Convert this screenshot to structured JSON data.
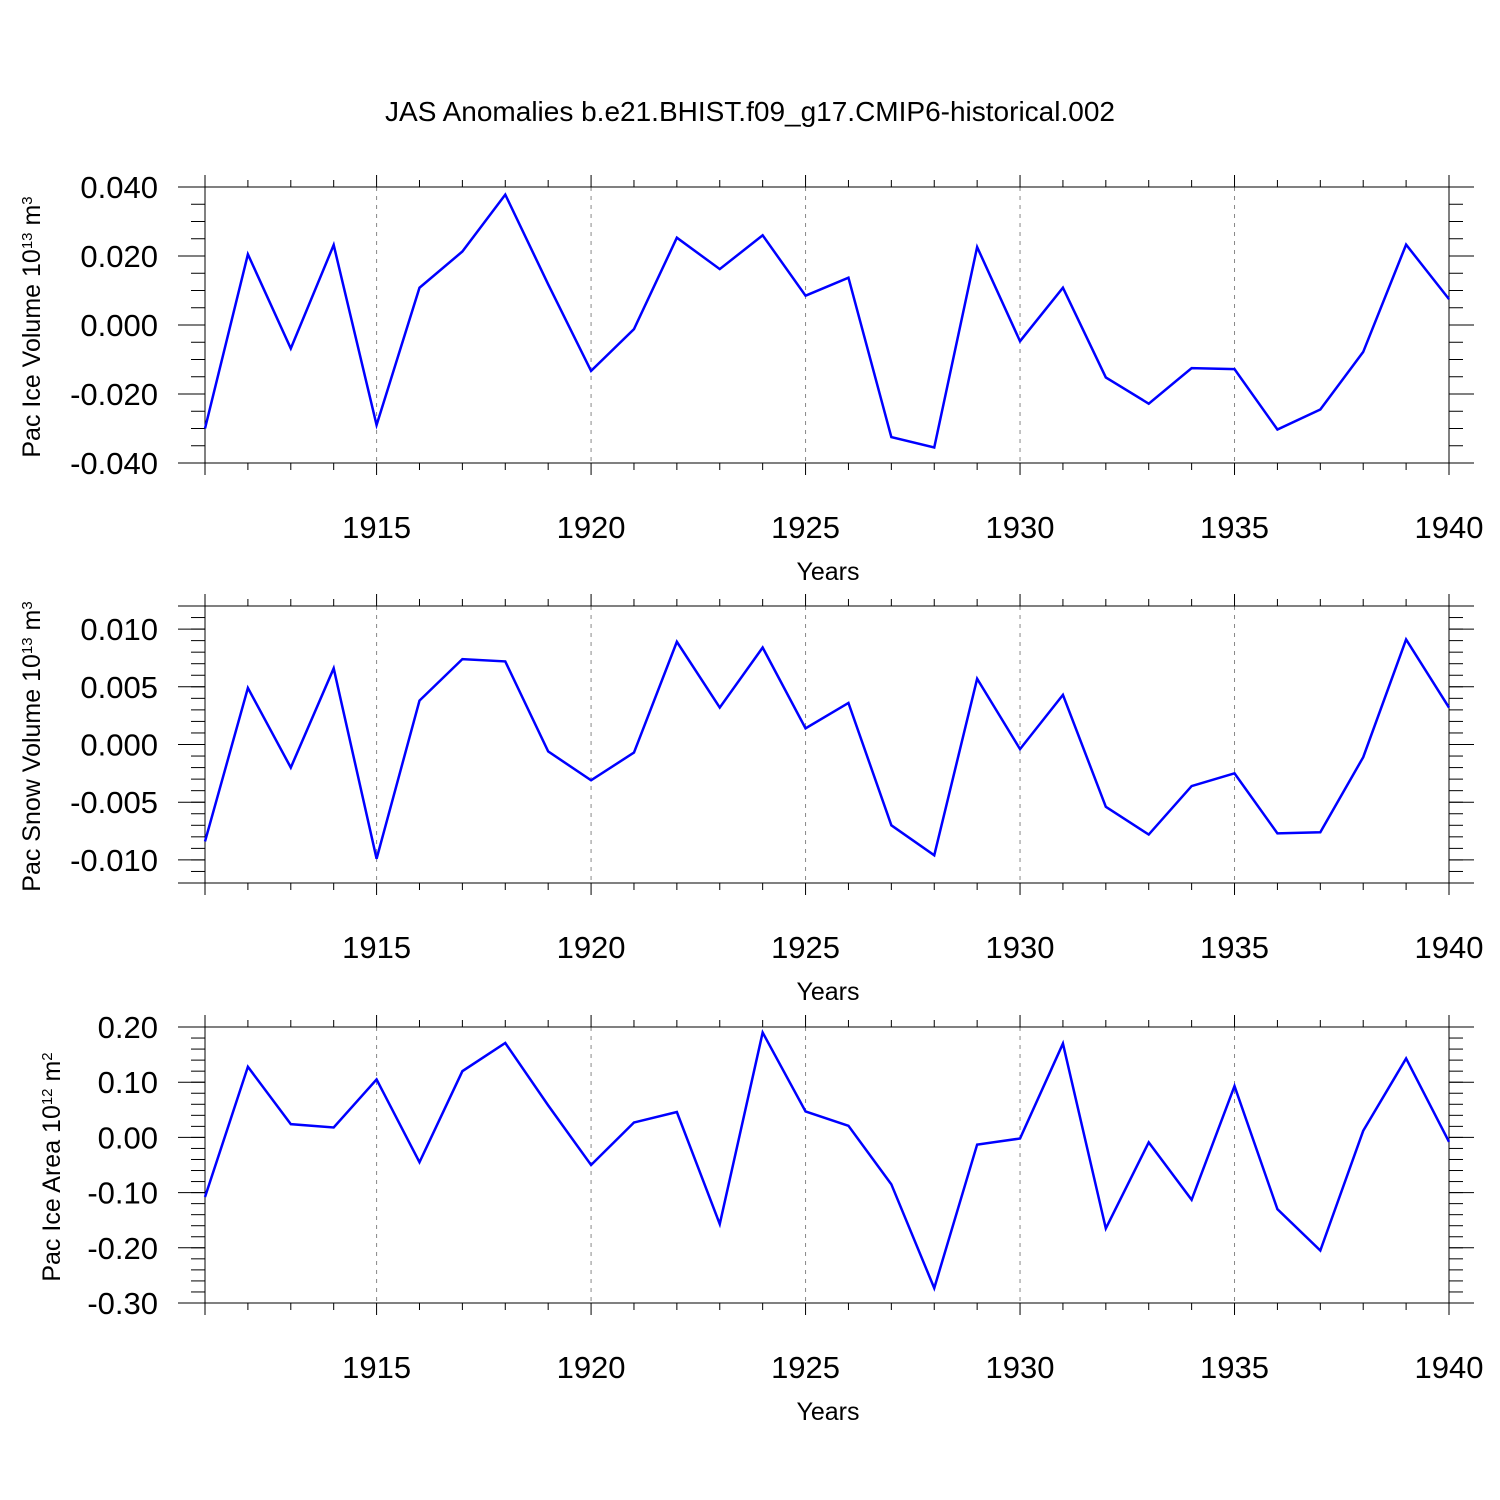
{
  "chart_data": {
    "title": "JAS Anomalies b.e21.BHIST.f09_g17.CMIP6-historical.002",
    "colors": {
      "line": "#0000ff",
      "axis": "#000000",
      "grid": "#888888"
    },
    "panels": [
      {
        "type": "line",
        "name": "Pac Ice Volume",
        "ylabel": {
          "main": "Pac Ice Volume 10",
          "exp": "13",
          "unit": " m",
          "unit_exp": "3"
        },
        "xlabel": "Years",
        "xlim": [
          1911,
          1940
        ],
        "ylim": [
          -0.04,
          0.04
        ],
        "yticks": [
          -0.04,
          -0.02,
          0.0,
          0.02,
          0.04
        ],
        "ytick_labels": [
          "-0.040",
          "-0.020",
          "0.000",
          "0.020",
          "0.040"
        ],
        "y_minor_step": 0.005,
        "xticks": [
          1915,
          1920,
          1925,
          1930,
          1935,
          1940
        ],
        "xtick_labels": [
          "1915",
          "1920",
          "1925",
          "1930",
          "1935",
          "1940"
        ],
        "grid": "vertical-dashed",
        "x": [
          1911,
          1912,
          1913,
          1914,
          1915,
          1916,
          1917,
          1918,
          1919,
          1920,
          1921,
          1922,
          1923,
          1924,
          1925,
          1926,
          1927,
          1928,
          1929,
          1930,
          1931,
          1932,
          1933,
          1934,
          1935,
          1936,
          1937,
          1938,
          1939,
          1940
        ],
        "values": [
          -0.03,
          0.0205,
          -0.0068,
          0.0232,
          -0.029,
          0.0108,
          0.0213,
          0.0378,
          0.0118,
          -0.0133,
          -0.0012,
          0.0253,
          0.0162,
          0.026,
          0.0085,
          0.0137,
          -0.0325,
          -0.0355,
          0.0226,
          -0.0047,
          0.0108,
          -0.0152,
          -0.0228,
          -0.0125,
          -0.0128,
          -0.0303,
          -0.0245,
          -0.0078,
          0.0233,
          0.0075
        ]
      },
      {
        "type": "line",
        "name": "Pac Snow Volume",
        "ylabel": {
          "main": "Pac Snow Volume 10",
          "exp": "13",
          "unit": " m",
          "unit_exp": "3"
        },
        "xlabel": "Years",
        "xlim": [
          1911,
          1940
        ],
        "ylim": [
          -0.012,
          0.012
        ],
        "yticks": [
          -0.01,
          -0.005,
          0.0,
          0.005,
          0.01
        ],
        "ytick_labels": [
          "-0.010",
          "-0.005",
          "0.000",
          "0.005",
          "0.010"
        ],
        "y_minor_step": 0.001,
        "xticks": [
          1915,
          1920,
          1925,
          1930,
          1935,
          1940
        ],
        "xtick_labels": [
          "1915",
          "1920",
          "1925",
          "1930",
          "1935",
          "1940"
        ],
        "grid": "vertical-dashed",
        "x": [
          1911,
          1912,
          1913,
          1914,
          1915,
          1916,
          1917,
          1918,
          1919,
          1920,
          1921,
          1922,
          1923,
          1924,
          1925,
          1926,
          1927,
          1928,
          1929,
          1930,
          1931,
          1932,
          1933,
          1934,
          1935,
          1936,
          1937,
          1938,
          1939,
          1940
        ],
        "values": [
          -0.0084,
          0.0049,
          -0.002,
          0.0066,
          -0.0099,
          0.0038,
          0.0074,
          0.0072,
          -0.0006,
          -0.0031,
          -0.0007,
          0.0089,
          0.0032,
          0.0084,
          0.0014,
          0.0036,
          -0.007,
          -0.0096,
          0.0057,
          -0.0004,
          0.0043,
          -0.0054,
          -0.0078,
          -0.0036,
          -0.0025,
          -0.0077,
          -0.0076,
          -0.0011,
          0.0091,
          0.0032
        ]
      },
      {
        "type": "line",
        "name": "Pac Ice Area",
        "ylabel": {
          "main": "Pac Ice Area 10",
          "exp": "12",
          "unit": " m",
          "unit_exp": "2"
        },
        "xlabel": "Years",
        "xlim": [
          1911,
          1940
        ],
        "ylim": [
          -0.3,
          0.2
        ],
        "yticks": [
          -0.3,
          -0.2,
          -0.1,
          0.0,
          0.1,
          0.2
        ],
        "ytick_labels": [
          "-0.30",
          "-0.20",
          "-0.10",
          "0.00",
          "0.10",
          "0.20"
        ],
        "y_minor_step": 0.02,
        "xticks": [
          1915,
          1920,
          1925,
          1930,
          1935,
          1940
        ],
        "xtick_labels": [
          "1915",
          "1920",
          "1925",
          "1930",
          "1935",
          "1940"
        ],
        "grid": "vertical-dashed",
        "x": [
          1911,
          1912,
          1913,
          1914,
          1915,
          1916,
          1917,
          1918,
          1919,
          1920,
          1921,
          1922,
          1923,
          1924,
          1925,
          1926,
          1927,
          1928,
          1929,
          1930,
          1931,
          1932,
          1933,
          1934,
          1935,
          1936,
          1937,
          1938,
          1939,
          1940
        ],
        "values": [
          -0.108,
          0.128,
          0.024,
          0.018,
          0.105,
          -0.045,
          0.12,
          0.171,
          0.058,
          -0.05,
          0.027,
          0.046,
          -0.157,
          0.19,
          0.047,
          0.021,
          -0.085,
          -0.273,
          -0.013,
          -0.002,
          0.17,
          -0.165,
          -0.009,
          -0.113,
          0.093,
          -0.13,
          -0.205,
          0.012,
          0.143,
          -0.008
        ]
      }
    ]
  }
}
